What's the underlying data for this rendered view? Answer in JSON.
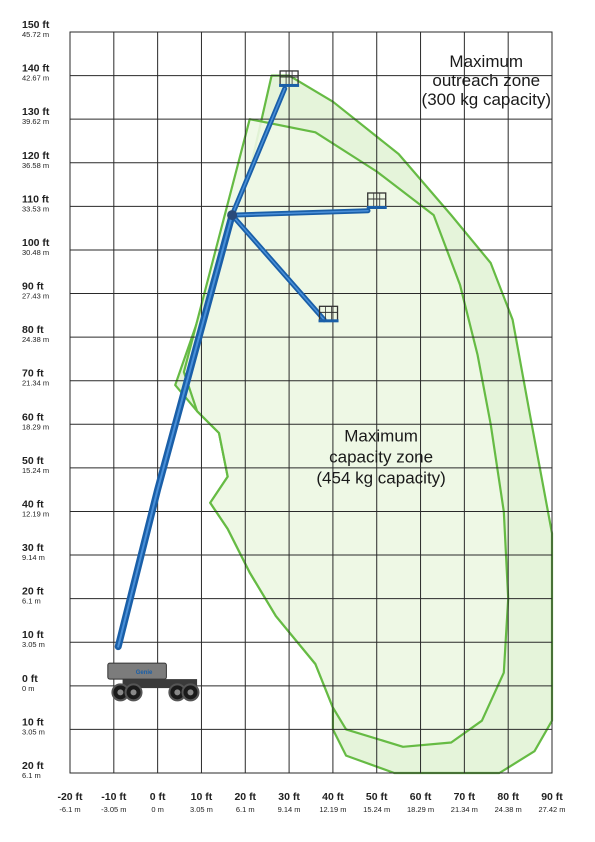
{
  "chart_data": {
    "type": "diagram",
    "y_ticks": [
      {
        "value": 150,
        "ft": "150 ft",
        "m": "45.72 m"
      },
      {
        "value": 140,
        "ft": "140 ft",
        "m": "42.67 m"
      },
      {
        "value": 130,
        "ft": "130 ft",
        "m": "39.62 m"
      },
      {
        "value": 120,
        "ft": "120 ft",
        "m": "36.58 m"
      },
      {
        "value": 110,
        "ft": "110 ft",
        "m": "33.53 m"
      },
      {
        "value": 100,
        "ft": "100 ft",
        "m": "30.48 m"
      },
      {
        "value": 90,
        "ft": "90 ft",
        "m": "27.43 m"
      },
      {
        "value": 80,
        "ft": "80 ft",
        "m": "24.38 m"
      },
      {
        "value": 70,
        "ft": "70 ft",
        "m": "21.34 m"
      },
      {
        "value": 60,
        "ft": "60 ft",
        "m": "18.29 m"
      },
      {
        "value": 50,
        "ft": "50 ft",
        "m": "15.24 m"
      },
      {
        "value": 40,
        "ft": "40 ft",
        "m": "12.19 m"
      },
      {
        "value": 30,
        "ft": "30 ft",
        "m": "9.14 m"
      },
      {
        "value": 20,
        "ft": "20 ft",
        "m": "6.1 m"
      },
      {
        "value": 10,
        "ft": "10 ft",
        "m": "3.05 m"
      },
      {
        "value": 0,
        "ft": "0 ft",
        "m": "0 m"
      },
      {
        "value": -10,
        "ft": "10 ft",
        "m": "3.05 m"
      },
      {
        "value": -20,
        "ft": "20 ft",
        "m": "6.1 m"
      }
    ],
    "x_ticks": [
      {
        "value": -20,
        "ft": "-20 ft",
        "m": "-6.1 m"
      },
      {
        "value": -10,
        "ft": "-10 ft",
        "m": "-3.05 m"
      },
      {
        "value": 0,
        "ft": "0 ft",
        "m": "0 m"
      },
      {
        "value": 10,
        "ft": "10 ft",
        "m": "3.05 m"
      },
      {
        "value": 20,
        "ft": "20 ft",
        "m": "6.1 m"
      },
      {
        "value": 30,
        "ft": "30 ft",
        "m": "9.14 m"
      },
      {
        "value": 40,
        "ft": "40 ft",
        "m": "12.19 m"
      },
      {
        "value": 50,
        "ft": "50 ft",
        "m": "15.24 m"
      },
      {
        "value": 60,
        "ft": "60 ft",
        "m": "18.29 m"
      },
      {
        "value": 70,
        "ft": "70 ft",
        "m": "21.34 m"
      },
      {
        "value": 80,
        "ft": "80 ft",
        "m": "24.38 m"
      },
      {
        "value": 90,
        "ft": "90 ft",
        "m": "27.42 m"
      }
    ],
    "xlim": [
      -20,
      90
    ],
    "ylim": [
      -20,
      150
    ],
    "grid": true,
    "zones": [
      {
        "name_lines": [
          "Maximum",
          "outreach zone",
          "(300 kg capacity)"
        ],
        "color": "#66bb44",
        "fill": "#e4f3d8",
        "boundary": [
          [
            4,
            69
          ],
          [
            21,
            118
          ],
          [
            26,
            140
          ],
          [
            30,
            140
          ],
          [
            40,
            134
          ],
          [
            55,
            122
          ],
          [
            67,
            108
          ],
          [
            76,
            97
          ],
          [
            81,
            84
          ],
          [
            85,
            62
          ],
          [
            90,
            35
          ],
          [
            90,
            -8
          ],
          [
            86,
            -15
          ],
          [
            78,
            -20
          ],
          [
            54,
            -20
          ],
          [
            43,
            -16
          ],
          [
            40,
            -10
          ],
          [
            40,
            -5
          ],
          [
            36,
            5
          ],
          [
            27,
            16
          ],
          [
            21,
            26
          ],
          [
            16,
            36
          ],
          [
            12,
            42
          ],
          [
            16,
            48
          ],
          [
            14,
            58
          ],
          [
            9,
            63
          ]
        ]
      },
      {
        "name_lines": [
          "Maximum",
          "capacity zone",
          "(454 kg capacity)"
        ],
        "color": "#66bb44",
        "fill": "#eef8e6",
        "boundary": [
          [
            6,
            72
          ],
          [
            21,
            130
          ],
          [
            36,
            127
          ],
          [
            50,
            118
          ],
          [
            63,
            108
          ],
          [
            69,
            92
          ],
          [
            73,
            76
          ],
          [
            76,
            60
          ],
          [
            79,
            40
          ],
          [
            80,
            20
          ],
          [
            79,
            3
          ],
          [
            74,
            -8
          ],
          [
            67,
            -13
          ],
          [
            56,
            -14
          ],
          [
            43,
            -10
          ],
          [
            40,
            -5
          ],
          [
            36,
            5
          ],
          [
            27,
            16
          ],
          [
            21,
            26
          ],
          [
            16,
            36
          ],
          [
            12,
            42
          ],
          [
            16,
            48
          ],
          [
            14,
            58
          ],
          [
            9,
            63
          ]
        ]
      }
    ],
    "machine": {
      "colors": {
        "boom": "#1a5fa8",
        "highlight": "#4a90d9",
        "chassis": "#3a3a3a",
        "wheel": "#1a1a1a"
      },
      "boom_base": [
        -9,
        10
      ],
      "knuckle": [
        17,
        108
      ],
      "main_boom_points": [
        [
          -9,
          9
        ],
        [
          0,
          45
        ],
        [
          17,
          108
        ]
      ],
      "jib_positions": [
        {
          "tip": [
            29,
            137
          ],
          "platform": [
            30,
            139
          ]
        },
        {
          "tip": [
            48,
            109
          ],
          "platform": [
            50,
            111
          ]
        },
        {
          "tip": [
            38,
            84
          ],
          "platform": [
            39,
            85
          ]
        }
      ],
      "brand": "Genie"
    }
  }
}
